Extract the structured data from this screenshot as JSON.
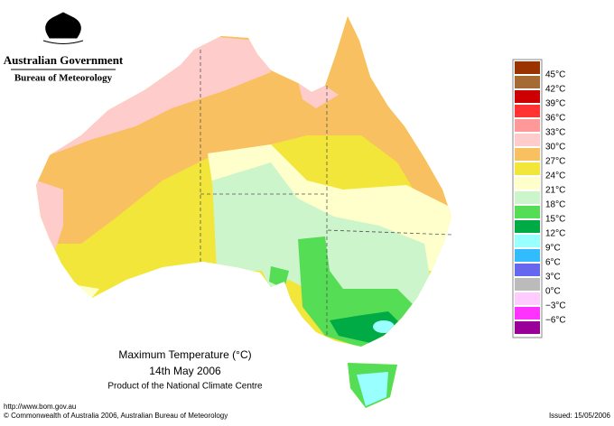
{
  "header": {
    "agency": "Australian Government",
    "bureau": "Bureau of Meteorology"
  },
  "map": {
    "title": "Maximum Temperature (°C)",
    "date": "14th May 2006",
    "product": "Product of the National Climate Centre"
  },
  "legend": {
    "labels": [
      "45°C",
      "42°C",
      "39°C",
      "36°C",
      "33°C",
      "30°C",
      "27°C",
      "24°C",
      "21°C",
      "18°C",
      "15°C",
      "12°C",
      "9°C",
      "6°C",
      "3°C",
      "0°C",
      "−3°C",
      "−6°C"
    ],
    "colors": [
      "#993300",
      "#a66a33",
      "#cc0000",
      "#ff3333",
      "#ff9999",
      "#ffcccc",
      "#f8c060",
      "#f2e63a",
      "#ffffcc",
      "#ccf5cc",
      "#55dd55",
      "#00aa44",
      "#99ffff",
      "#33bbff",
      "#6666ee",
      "#bbbbbb",
      "#ffccff",
      "#ff33ff",
      "#990099"
    ]
  },
  "footer": {
    "url": "http://www.bom.gov.au",
    "copyright": "© Commonwealth of Australia 2006, Australian Bureau of Meteorology",
    "issued": "Issued: 15/05/2006"
  }
}
